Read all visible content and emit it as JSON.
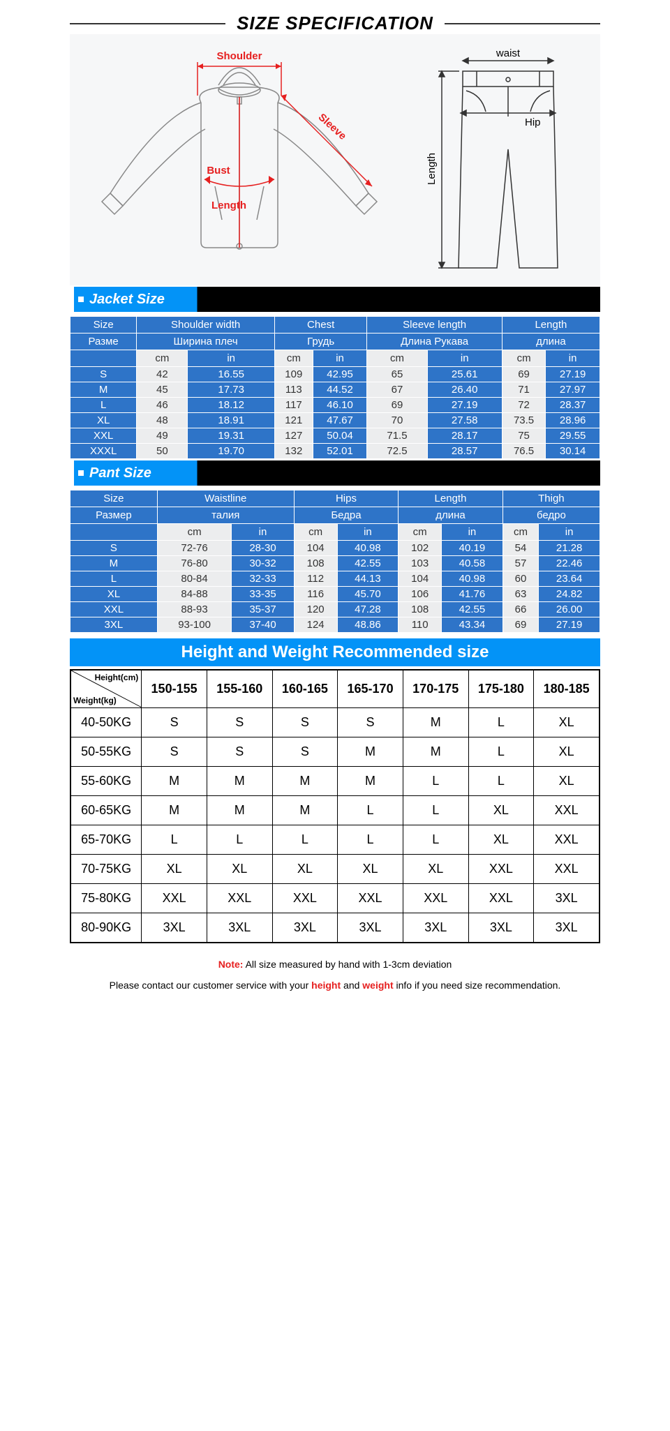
{
  "title": "SIZE SPECIFICATION",
  "diagram": {
    "jacket_labels": {
      "shoulder": "Shoulder",
      "sleeve": "Sleeve",
      "bust": "Bust",
      "length": "Length"
    },
    "pants_labels": {
      "waist": "waist",
      "hip": "Hip",
      "length": "Length"
    },
    "label_color": "#e62020",
    "line_color": "#888"
  },
  "jacket": {
    "band": "Jacket Size",
    "headers_en": [
      "Size",
      "Shoulder width",
      "Chest",
      "Sleeve length",
      "Length"
    ],
    "headers_ru": [
      "Разме",
      "Ширина плеч",
      "Грудь",
      "Длина Рукава",
      "длина"
    ],
    "units": [
      "",
      "cm",
      "in",
      "cm",
      "in",
      "cm",
      "in",
      "cm",
      "in"
    ],
    "rows": [
      [
        "S",
        "42",
        "16.55",
        "109",
        "42.95",
        "65",
        "25.61",
        "69",
        "27.19"
      ],
      [
        "M",
        "45",
        "17.73",
        "113",
        "44.52",
        "67",
        "26.40",
        "71",
        "27.97"
      ],
      [
        "L",
        "46",
        "18.12",
        "117",
        "46.10",
        "69",
        "27.19",
        "72",
        "28.37"
      ],
      [
        "XL",
        "48",
        "18.91",
        "121",
        "47.67",
        "70",
        "27.58",
        "73.5",
        "28.96"
      ],
      [
        "XXL",
        "49",
        "19.31",
        "127",
        "50.04",
        "71.5",
        "28.17",
        "75",
        "29.55"
      ],
      [
        "XXXL",
        "50",
        "19.70",
        "132",
        "52.01",
        "72.5",
        "28.57",
        "76.5",
        "30.14"
      ]
    ]
  },
  "pant": {
    "band": "Pant Size",
    "headers_en": [
      "Size",
      "Waistline",
      "Hips",
      "Length",
      "Thigh"
    ],
    "headers_ru": [
      "Размер",
      "талия",
      "Бедра",
      "длина",
      "бедро"
    ],
    "units": [
      "",
      "cm",
      "in",
      "cm",
      "in",
      "cm",
      "in",
      "cm",
      "in"
    ],
    "rows": [
      [
        "S",
        "72-76",
        "28-30",
        "104",
        "40.98",
        "102",
        "40.19",
        "54",
        "21.28"
      ],
      [
        "M",
        "76-80",
        "30-32",
        "108",
        "42.55",
        "103",
        "40.58",
        "57",
        "22.46"
      ],
      [
        "L",
        "80-84",
        "32-33",
        "112",
        "44.13",
        "104",
        "40.98",
        "60",
        "23.64"
      ],
      [
        "XL",
        "84-88",
        "33-35",
        "116",
        "45.70",
        "106",
        "41.76",
        "63",
        "24.82"
      ],
      [
        "XXL",
        "88-93",
        "35-37",
        "120",
        "47.28",
        "108",
        "42.55",
        "66",
        "26.00"
      ],
      [
        "3XL",
        "93-100",
        "37-40",
        "124",
        "48.86",
        "110",
        "43.34",
        "69",
        "27.19"
      ]
    ]
  },
  "rec": {
    "band": "Height and Weight Recommended size",
    "height_label": "Height(cm)",
    "weight_label": "Weight(kg)",
    "heights": [
      "150-155",
      "155-160",
      "160-165",
      "165-170",
      "170-175",
      "175-180",
      "180-185"
    ],
    "rows": [
      {
        "w": "40-50KG",
        "v": [
          "S",
          "S",
          "S",
          "S",
          "M",
          "L",
          "XL"
        ]
      },
      {
        "w": "50-55KG",
        "v": [
          "S",
          "S",
          "S",
          "M",
          "M",
          "L",
          "XL"
        ]
      },
      {
        "w": "55-60KG",
        "v": [
          "M",
          "M",
          "M",
          "M",
          "L",
          "L",
          "XL"
        ]
      },
      {
        "w": "60-65KG",
        "v": [
          "M",
          "M",
          "M",
          "L",
          "L",
          "XL",
          "XXL"
        ]
      },
      {
        "w": "65-70KG",
        "v": [
          "L",
          "L",
          "L",
          "L",
          "L",
          "XL",
          "XXL"
        ]
      },
      {
        "w": "70-75KG",
        "v": [
          "XL",
          "XL",
          "XL",
          "XL",
          "XL",
          "XXL",
          "XXL"
        ]
      },
      {
        "w": "75-80KG",
        "v": [
          "XXL",
          "XXL",
          "XXL",
          "XXL",
          "XXL",
          "XXL",
          "3XL"
        ]
      },
      {
        "w": "80-90KG",
        "v": [
          "3XL",
          "3XL",
          "3XL",
          "3XL",
          "3XL",
          "3XL",
          "3XL"
        ]
      }
    ]
  },
  "note": {
    "prefix": "Note:",
    "text": "  All size measured by hand with 1-3cm deviation",
    "text2a": "Please contact our customer service with your ",
    "h": "height",
    "and": " and ",
    "w": "weight",
    "text2b": " info if you need size recommendation."
  },
  "colors": {
    "blue_header": "#2e74c8",
    "band_blue": "#0393f7",
    "zebra_light": "#ecedee"
  }
}
